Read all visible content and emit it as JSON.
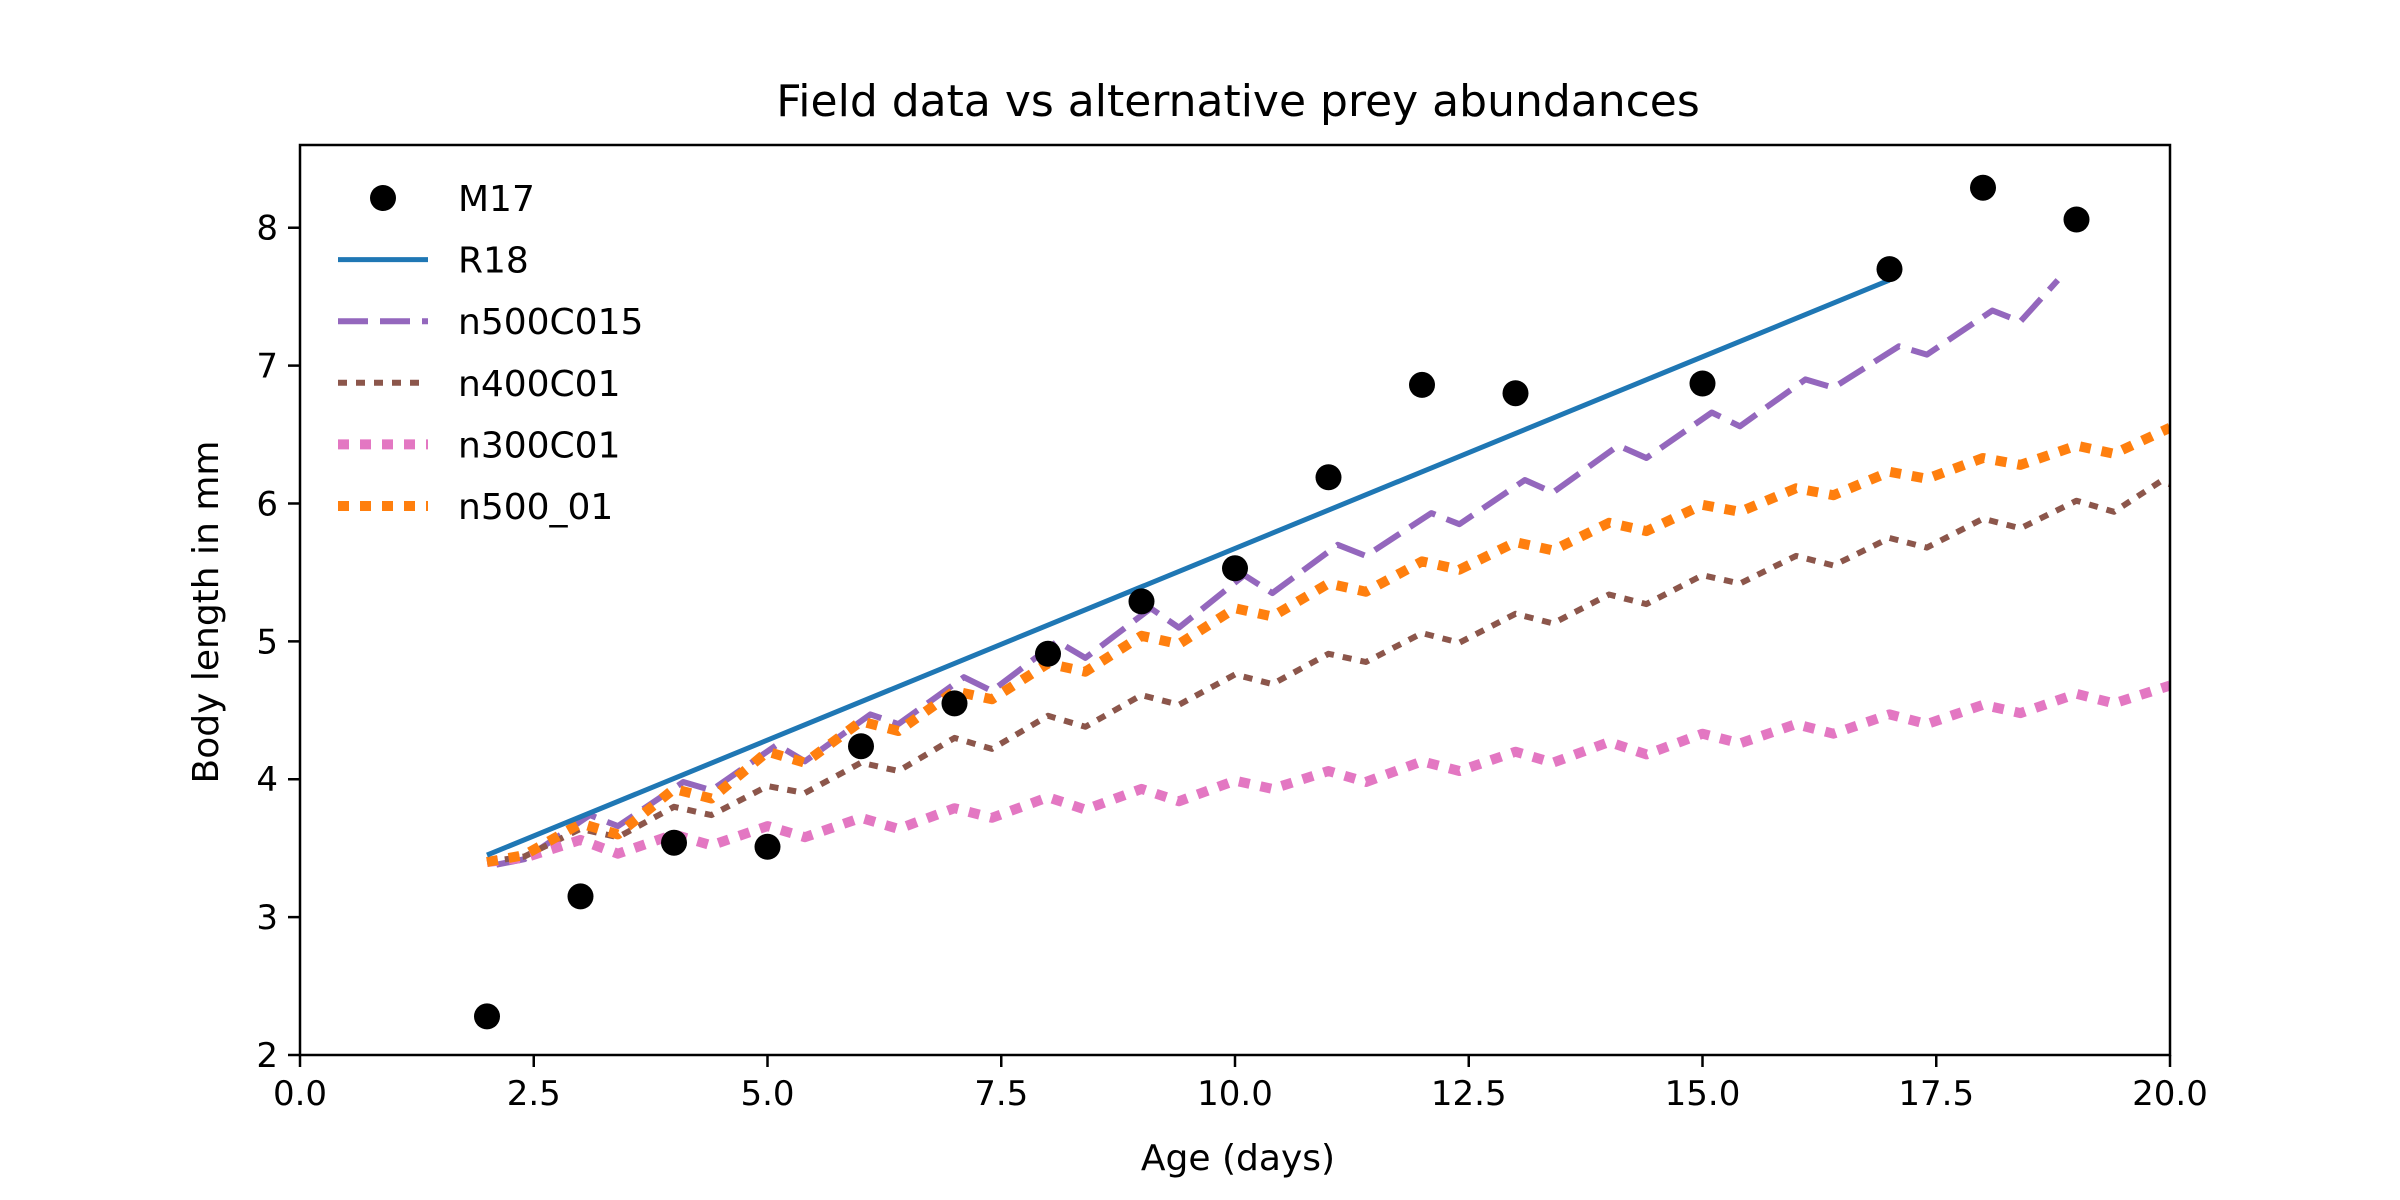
{
  "chart_data": {
    "type": "line",
    "title": "Field data vs alternative prey abundances",
    "xlabel": "Age (days)",
    "ylabel": "Body length in mm",
    "xlim": [
      0,
      20
    ],
    "ylim": [
      2,
      8.6
    ],
    "xticks": [
      0,
      2.5,
      5,
      7.5,
      10,
      12.5,
      15,
      17.5,
      20
    ],
    "xtick_labels": [
      "0.0",
      "2.5",
      "5.0",
      "7.5",
      "10.0",
      "12.5",
      "15.0",
      "17.5",
      "20.0"
    ],
    "yticks": [
      2,
      3,
      4,
      5,
      6,
      7,
      8
    ],
    "ytick_labels": [
      "2",
      "3",
      "4",
      "5",
      "6",
      "7",
      "8"
    ],
    "grid": false,
    "legend_position": "top-left",
    "series": [
      {
        "name": "M17",
        "kind": "scatter",
        "color": "#000000",
        "x": [
          2,
          3,
          4,
          5,
          6,
          7,
          8,
          9,
          10,
          11,
          12,
          13,
          15,
          17,
          18,
          19
        ],
        "y": [
          2.28,
          3.15,
          3.54,
          3.51,
          4.24,
          4.55,
          4.91,
          5.29,
          5.53,
          6.19,
          6.86,
          6.8,
          6.87,
          7.7,
          8.29,
          8.06
        ]
      },
      {
        "name": "R18",
        "kind": "line",
        "style": "solid",
        "color": "#1f77b4",
        "x": [
          2,
          17
        ],
        "y": [
          3.45,
          7.62
        ]
      },
      {
        "name": "n500C015",
        "kind": "line",
        "style": "dashed",
        "color": "#9467bd",
        "x": [
          2.1,
          2.4,
          3.1,
          3.4,
          4.1,
          4.4,
          5.1,
          5.4,
          6.1,
          6.4,
          7.1,
          7.4,
          8.1,
          8.4,
          9.1,
          9.4,
          10.1,
          10.4,
          11.1,
          11.4,
          12.1,
          12.4,
          13.1,
          13.4,
          14.1,
          14.4,
          15.1,
          15.4,
          16.1,
          16.4,
          17.1,
          17.4,
          18.1,
          18.4,
          18.8
        ],
        "y": [
          3.38,
          3.42,
          3.74,
          3.66,
          3.98,
          3.92,
          4.25,
          4.13,
          4.47,
          4.4,
          4.74,
          4.64,
          5.0,
          4.88,
          5.24,
          5.1,
          5.48,
          5.35,
          5.7,
          5.62,
          5.93,
          5.85,
          6.17,
          6.08,
          6.42,
          6.33,
          6.66,
          6.56,
          6.9,
          6.84,
          7.14,
          7.08,
          7.4,
          7.32,
          7.62
        ]
      },
      {
        "name": "n400C01",
        "kind": "line",
        "style": "dotted",
        "color": "#8c564b",
        "x": [
          2.0,
          2.4,
          3.0,
          3.4,
          4.0,
          4.4,
          5.0,
          5.4,
          6.0,
          6.4,
          7.0,
          7.4,
          8.0,
          8.4,
          9.0,
          9.4,
          10.0,
          10.4,
          11.0,
          11.4,
          12.0,
          12.4,
          13.0,
          13.4,
          14.0,
          14.4,
          15.0,
          15.4,
          16.0,
          16.4,
          17.0,
          17.4,
          18.0,
          18.4,
          19.0,
          19.4,
          19.9,
          20.0
        ],
        "y": [
          3.4,
          3.44,
          3.64,
          3.58,
          3.8,
          3.74,
          3.95,
          3.9,
          4.12,
          4.06,
          4.3,
          4.22,
          4.46,
          4.38,
          4.61,
          4.54,
          4.76,
          4.69,
          4.91,
          4.85,
          5.06,
          4.99,
          5.2,
          5.13,
          5.34,
          5.27,
          5.48,
          5.42,
          5.62,
          5.55,
          5.75,
          5.68,
          5.89,
          5.82,
          6.02,
          5.94,
          6.16,
          6.14
        ]
      },
      {
        "name": "n300C01",
        "kind": "line",
        "style": "dotted-thick",
        "color": "#e377c2",
        "x": [
          2.0,
          2.4,
          3.0,
          3.4,
          4.0,
          4.4,
          5.0,
          5.4,
          6.0,
          6.4,
          7.0,
          7.4,
          8.0,
          8.4,
          9.0,
          9.4,
          10.0,
          10.4,
          11.0,
          11.4,
          12.0,
          12.4,
          13.0,
          13.4,
          14.0,
          14.4,
          15.0,
          15.4,
          16.0,
          16.4,
          17.0,
          17.4,
          18.0,
          18.4,
          19.0,
          19.4,
          20.0
        ],
        "y": [
          3.4,
          3.43,
          3.56,
          3.46,
          3.6,
          3.52,
          3.66,
          3.58,
          3.72,
          3.64,
          3.79,
          3.72,
          3.87,
          3.78,
          3.93,
          3.84,
          3.99,
          3.93,
          4.06,
          3.98,
          4.13,
          4.06,
          4.2,
          4.12,
          4.27,
          4.18,
          4.33,
          4.26,
          4.4,
          4.33,
          4.47,
          4.4,
          4.54,
          4.48,
          4.62,
          4.55,
          4.68
        ]
      },
      {
        "name": "n500_01",
        "kind": "line",
        "style": "dotted-thick",
        "color": "#ff7f0e",
        "x": [
          2.0,
          2.4,
          3.0,
          3.4,
          4.0,
          4.4,
          5.0,
          5.4,
          6.0,
          6.4,
          7.0,
          7.4,
          8.0,
          8.4,
          9.0,
          9.4,
          10.0,
          10.4,
          11.0,
          11.4,
          12.0,
          12.4,
          13.0,
          13.4,
          14.0,
          14.4,
          15.0,
          15.4,
          16.0,
          16.4,
          17.0,
          17.4,
          18.0,
          18.4,
          19.0,
          19.4,
          20.0
        ],
        "y": [
          3.4,
          3.45,
          3.68,
          3.6,
          3.93,
          3.86,
          4.2,
          4.12,
          4.42,
          4.35,
          4.64,
          4.58,
          4.84,
          4.78,
          5.04,
          4.98,
          5.24,
          5.18,
          5.42,
          5.36,
          5.58,
          5.52,
          5.72,
          5.66,
          5.86,
          5.8,
          5.99,
          5.94,
          6.11,
          6.06,
          6.23,
          6.18,
          6.33,
          6.28,
          6.42,
          6.36,
          6.55
        ]
      }
    ]
  }
}
